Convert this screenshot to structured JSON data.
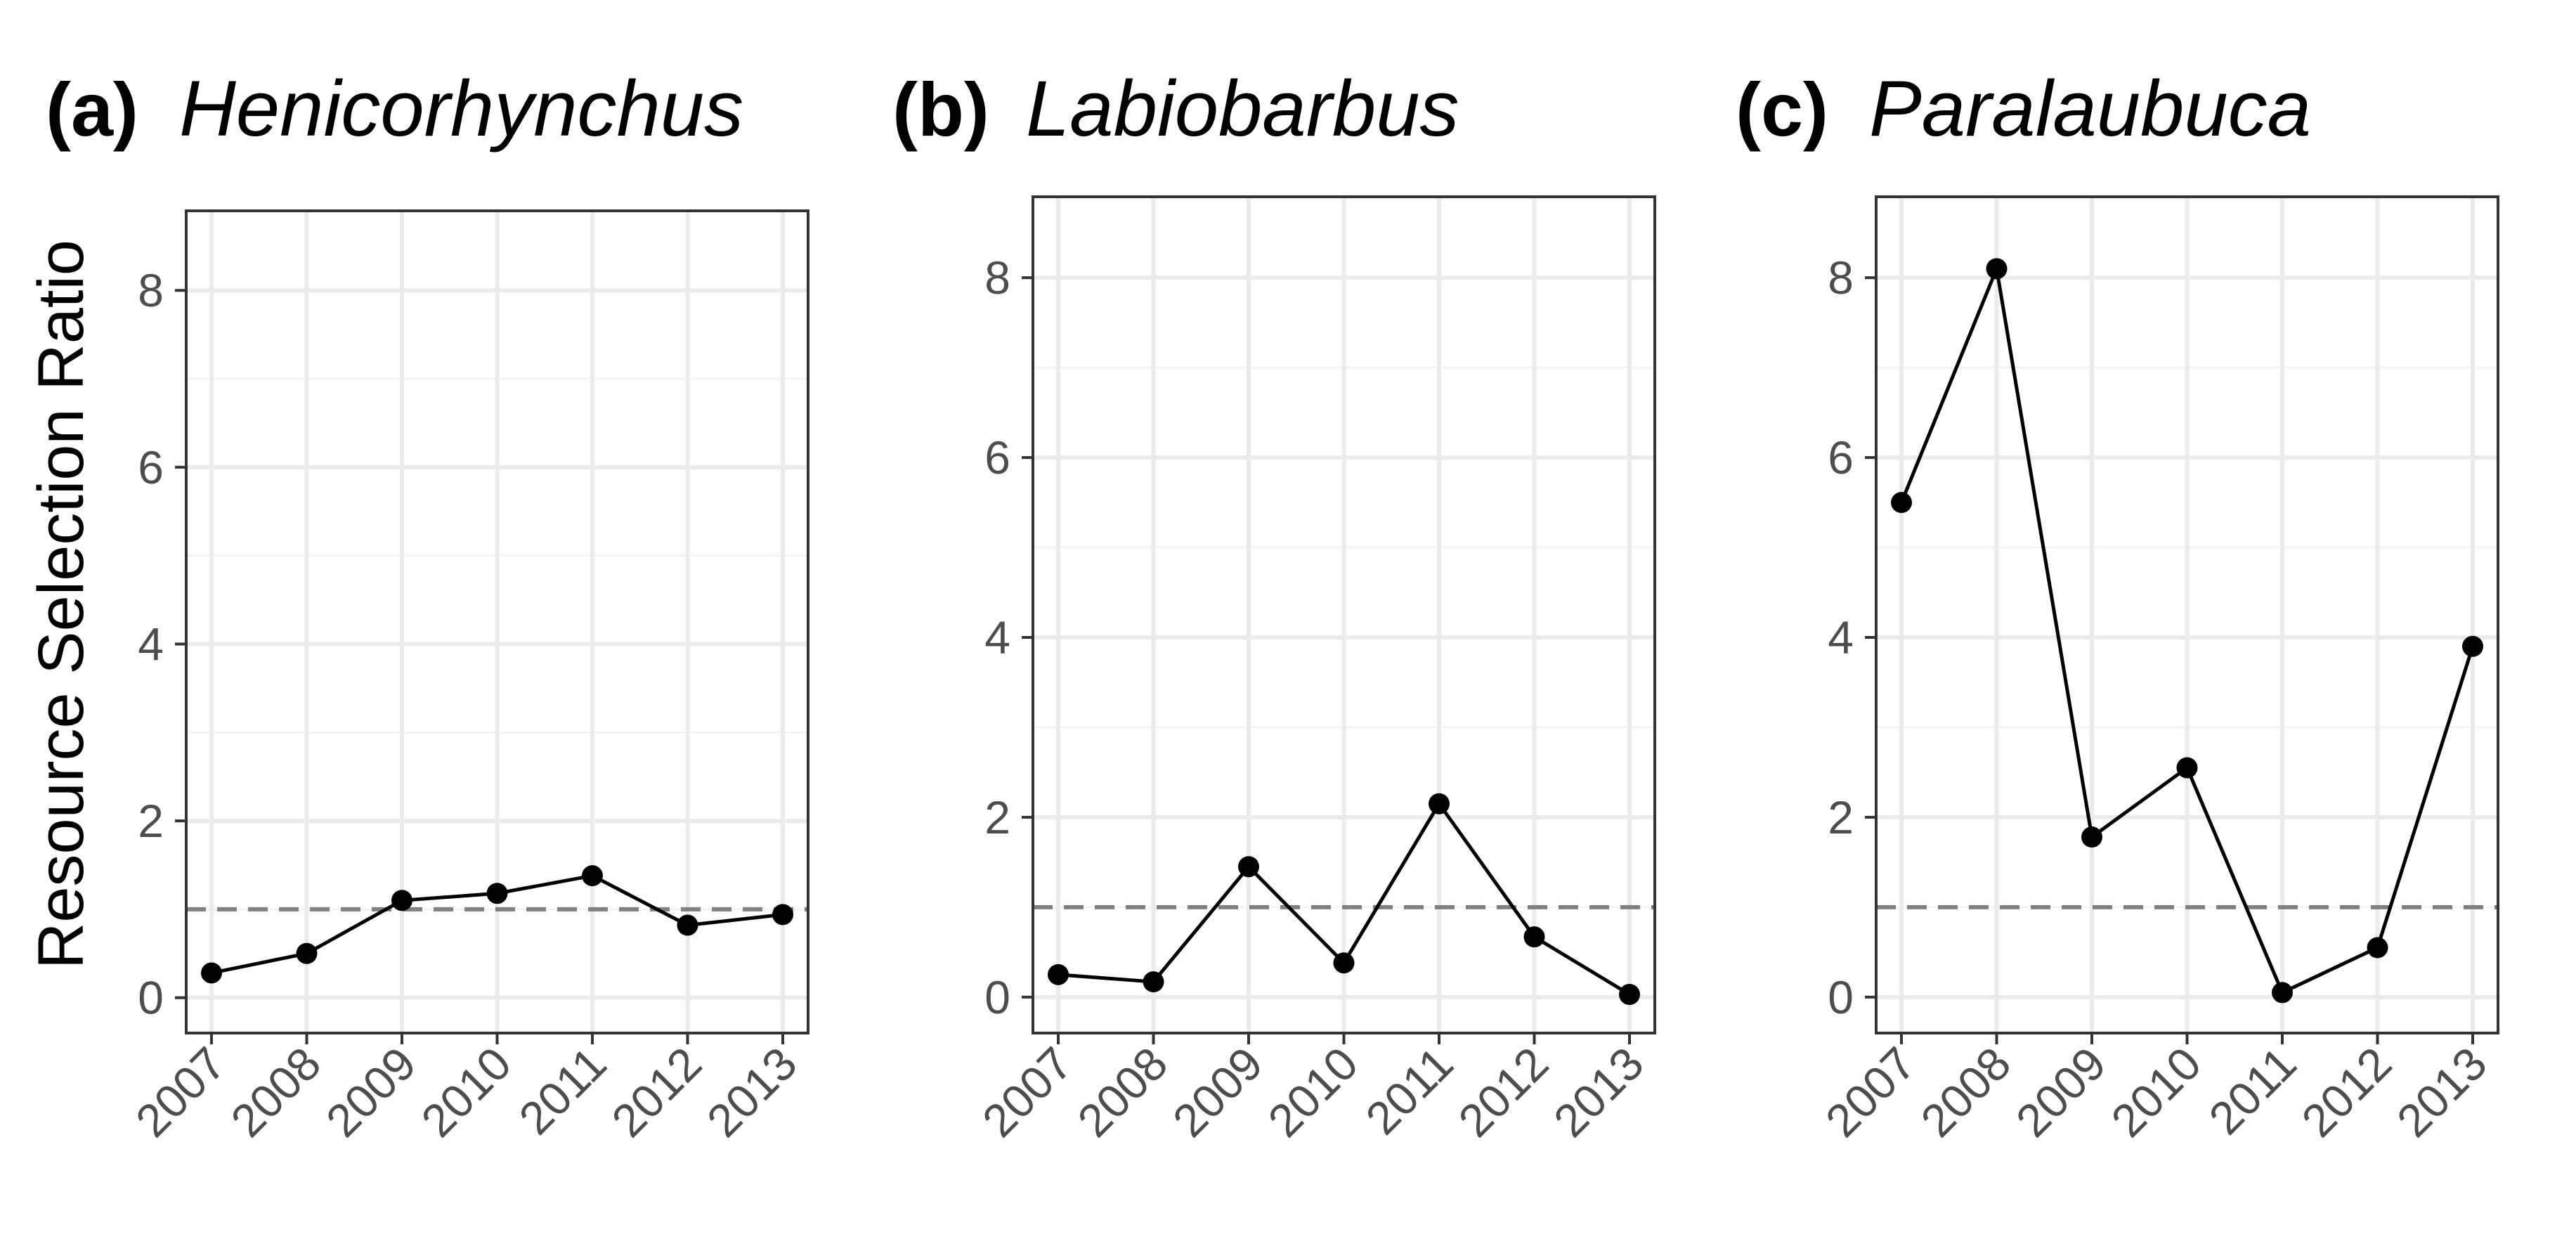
{
  "figure": {
    "ylabel": "Resource Selection Ratio",
    "reference_line": 1
  },
  "chart_data": [
    {
      "type": "line",
      "panel_label": "(a)",
      "title": "Henicorhynchus",
      "categories": [
        "2007",
        "2008",
        "2009",
        "2010",
        "2011",
        "2012",
        "2013"
      ],
      "values": [
        0.28,
        0.5,
        1.1,
        1.18,
        1.38,
        0.82,
        0.94
      ],
      "ylim": [
        -0.4,
        8.9
      ],
      "yticks": [
        0,
        2,
        4,
        6,
        8
      ],
      "ylabel": "Resource Selection Ratio",
      "xlabel": "",
      "reference_line": 1
    },
    {
      "type": "line",
      "panel_label": "(b)",
      "title": "Labiobarbus",
      "categories": [
        "2007",
        "2008",
        "2009",
        "2010",
        "2011",
        "2012",
        "2013"
      ],
      "values": [
        0.25,
        0.17,
        1.45,
        0.38,
        2.15,
        0.67,
        0.03
      ],
      "ylim": [
        -0.4,
        8.9
      ],
      "yticks": [
        0,
        2,
        4,
        6,
        8
      ],
      "ylabel": "",
      "xlabel": "",
      "reference_line": 1
    },
    {
      "type": "line",
      "panel_label": "(c)",
      "title": "Paralaubuca",
      "categories": [
        "2007",
        "2008",
        "2009",
        "2010",
        "2011",
        "2012",
        "2013"
      ],
      "values": [
        5.5,
        8.1,
        1.78,
        2.55,
        0.05,
        0.55,
        3.9
      ],
      "ylim": [
        -0.4,
        8.9
      ],
      "yticks": [
        0,
        2,
        4,
        6,
        8
      ],
      "ylabel": "",
      "xlabel": "",
      "reference_line": 1
    }
  ]
}
